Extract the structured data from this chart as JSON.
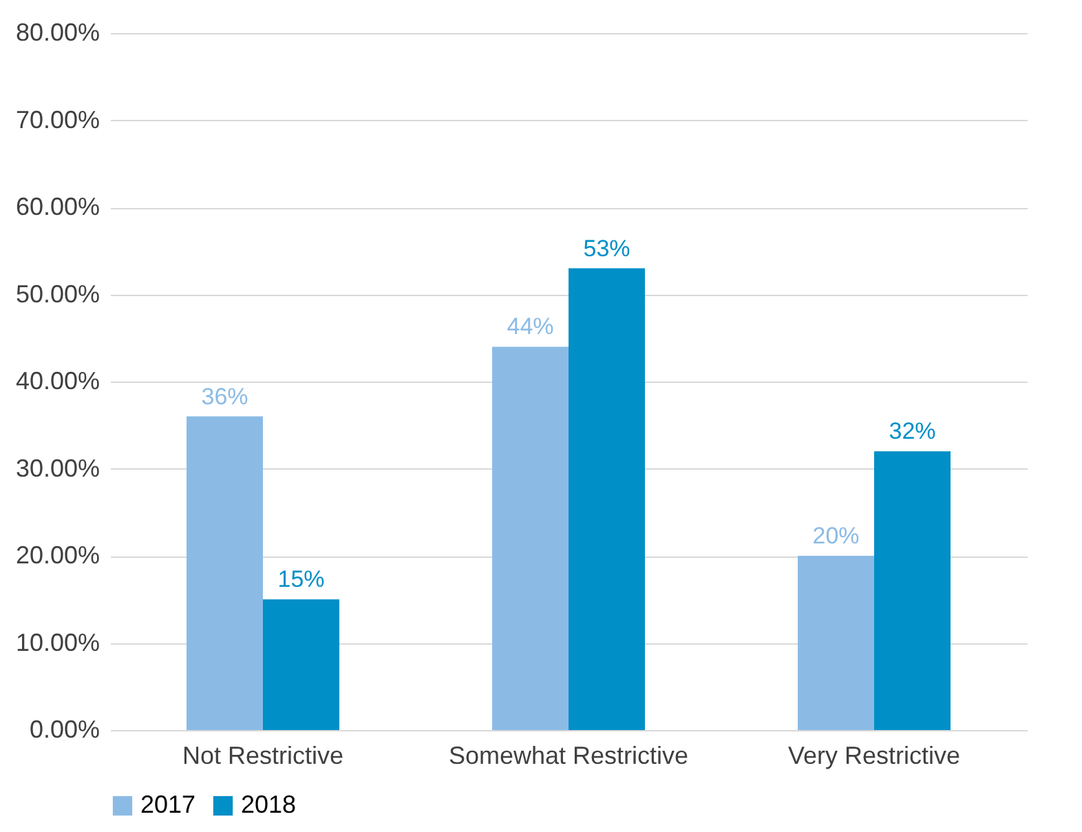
{
  "chart_data": {
    "type": "bar",
    "categories": [
      "Not Restrictive",
      "Somewhat Restrictive",
      "Very Restrictive"
    ],
    "series": [
      {
        "name": "2017",
        "color": "#8bbbe5",
        "values": [
          36,
          44,
          20
        ],
        "value_labels": [
          "36%",
          "44%",
          "20%"
        ]
      },
      {
        "name": "2018",
        "color": "#008fc7",
        "values": [
          15,
          53,
          32
        ],
        "value_labels": [
          "15%",
          "53%",
          "32%"
        ]
      }
    ],
    "ylim": [
      0,
      80
    ],
    "yticks": [
      {
        "value": 0,
        "label": "0.00%"
      },
      {
        "value": 10,
        "label": "10.00%"
      },
      {
        "value": 20,
        "label": "20.00%"
      },
      {
        "value": 30,
        "label": "30.00%"
      },
      {
        "value": 40,
        "label": "40.00%"
      },
      {
        "value": 50,
        "label": "50.00%"
      },
      {
        "value": 60,
        "label": "60.00%"
      },
      {
        "value": 70,
        "label": "70.00%"
      },
      {
        "value": 80,
        "label": "80.00%"
      }
    ],
    "grid": "y",
    "legend": "bottom"
  }
}
